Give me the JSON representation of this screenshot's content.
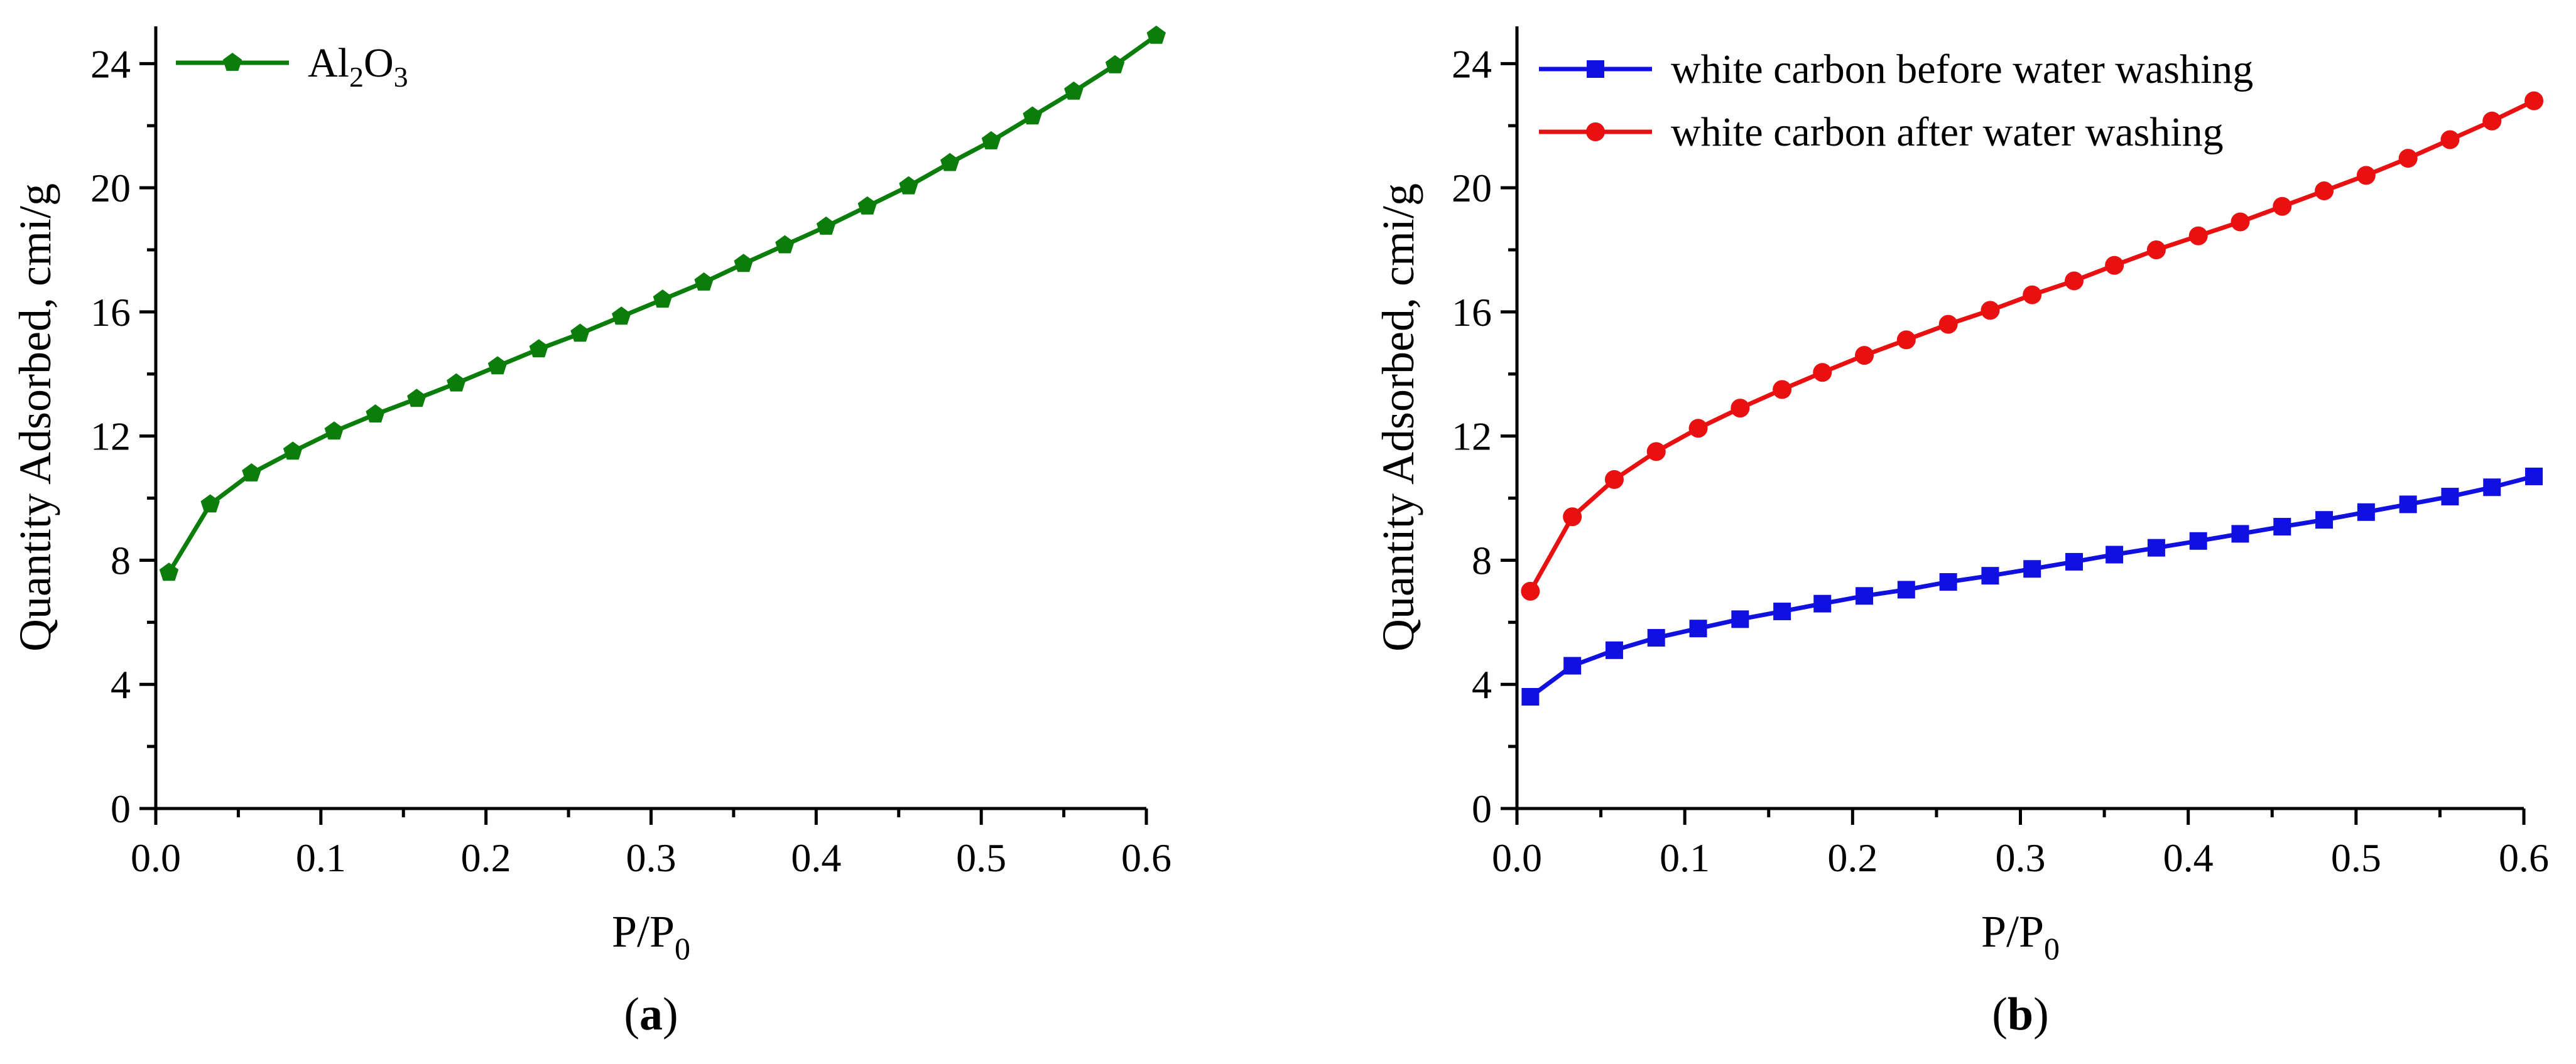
{
  "chart_data": [
    {
      "type": "line",
      "panel_label": "(a)",
      "panel_letter": "a",
      "xlabel": "P/P",
      "xlabel_sub": "0",
      "ylabel": "Quantity Adsorbed, cmi/g",
      "xlim": [
        0.0,
        0.6
      ],
      "ylim": [
        0,
        25.2
      ],
      "xticks": [
        0.0,
        0.1,
        0.2,
        0.3,
        0.4,
        0.5,
        0.6
      ],
      "xtick_labels": [
        "0.0",
        "0.1",
        "0.2",
        "0.3",
        "0.4",
        "0.5",
        "0.6"
      ],
      "yticks": [
        0,
        4,
        8,
        12,
        16,
        20,
        24
      ],
      "ytick_labels": [
        "0",
        "4",
        "8",
        "12",
        "16",
        "20",
        "24"
      ],
      "legend_position": "top-left",
      "series": [
        {
          "name": "Al2O3",
          "legend_main": "Al",
          "legend_sub1": "2",
          "legend_mid": "O",
          "legend_sub2": "3",
          "color": "#0a7d0a",
          "marker": "pentagon",
          "x": [
            0.008,
            0.033,
            0.058,
            0.083,
            0.108,
            0.133,
            0.158,
            0.182,
            0.207,
            0.232,
            0.257,
            0.282,
            0.307,
            0.332,
            0.356,
            0.381,
            0.406,
            0.431,
            0.456,
            0.481,
            0.506,
            0.531,
            0.556,
            0.581,
            0.606
          ],
          "values": [
            7.6,
            9.8,
            10.8,
            11.5,
            12.15,
            12.7,
            13.2,
            13.7,
            14.25,
            14.8,
            15.3,
            15.85,
            16.4,
            16.95,
            17.55,
            18.15,
            18.75,
            19.4,
            20.05,
            20.8,
            21.5,
            22.3,
            23.1,
            23.95,
            24.9
          ]
        }
      ]
    },
    {
      "type": "line",
      "panel_label": "(b)",
      "panel_letter": "b",
      "xlabel": "P/P",
      "xlabel_sub": "0",
      "ylabel": "Quantity Adsorbed, cmi/g",
      "xlim": [
        0.0,
        0.6
      ],
      "ylim": [
        0,
        25.2
      ],
      "xticks": [
        0.0,
        0.1,
        0.2,
        0.3,
        0.4,
        0.5,
        0.6
      ],
      "xtick_labels": [
        "0.0",
        "0.1",
        "0.2",
        "0.3",
        "0.4",
        "0.5",
        "0.6"
      ],
      "yticks": [
        0,
        4,
        8,
        12,
        16,
        20,
        24
      ],
      "ytick_labels": [
        "0",
        "4",
        "8",
        "12",
        "16",
        "20",
        "24"
      ],
      "legend_position": "top-left",
      "series": [
        {
          "name": "white carbon before water washing",
          "color": "#1010e0",
          "marker": "square",
          "x": [
            0.008,
            0.033,
            0.058,
            0.083,
            0.108,
            0.133,
            0.158,
            0.182,
            0.207,
            0.232,
            0.257,
            0.282,
            0.307,
            0.332,
            0.356,
            0.381,
            0.406,
            0.431,
            0.456,
            0.481,
            0.506,
            0.531,
            0.556,
            0.581,
            0.606
          ],
          "values": [
            3.6,
            4.6,
            5.1,
            5.5,
            5.8,
            6.1,
            6.35,
            6.6,
            6.85,
            7.05,
            7.3,
            7.5,
            7.72,
            7.95,
            8.18,
            8.4,
            8.62,
            8.85,
            9.08,
            9.3,
            9.55,
            9.8,
            10.05,
            10.35,
            10.7
          ]
        },
        {
          "name": "white carbon after water washing",
          "color": "#e81010",
          "marker": "circle",
          "x": [
            0.008,
            0.033,
            0.058,
            0.083,
            0.108,
            0.133,
            0.158,
            0.182,
            0.207,
            0.232,
            0.257,
            0.282,
            0.307,
            0.332,
            0.356,
            0.381,
            0.406,
            0.431,
            0.456,
            0.481,
            0.506,
            0.531,
            0.556,
            0.581,
            0.606
          ],
          "values": [
            7.0,
            9.4,
            10.6,
            11.5,
            12.25,
            12.9,
            13.5,
            14.05,
            14.6,
            15.1,
            15.6,
            16.05,
            16.55,
            17.0,
            17.5,
            18.0,
            18.45,
            18.9,
            19.4,
            19.9,
            20.4,
            20.95,
            21.55,
            22.15,
            22.8
          ]
        }
      ]
    }
  ]
}
